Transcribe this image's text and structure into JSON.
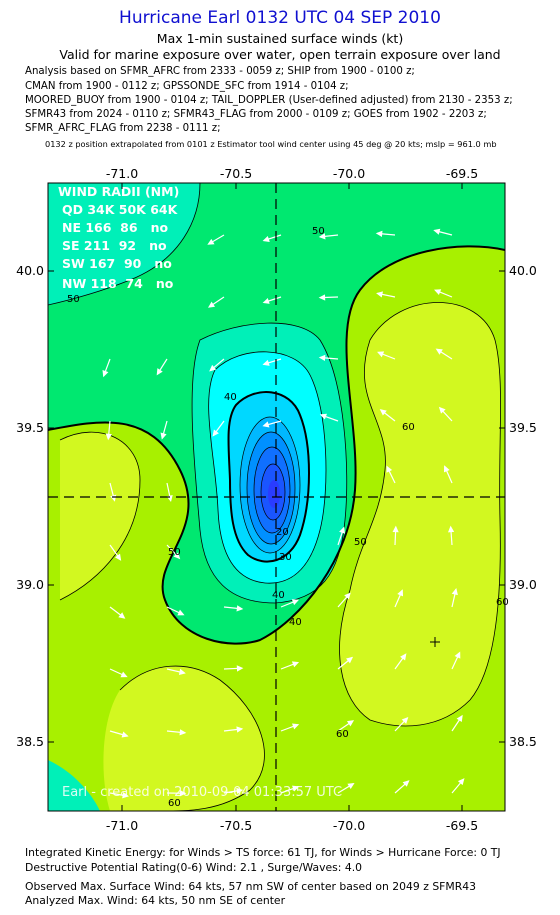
{
  "header": {
    "title": "Hurricane Earl 0132 UTC 04 SEP 2010",
    "subtitle_1": "Max 1-min sustained surface winds (kt)",
    "subtitle_2": "Valid for marine exposure over water, open terrain exposure over land"
  },
  "analysis_lines": [
    "Analysis based on SFMR_AFRC from 2333 - 0059 z; SHIP from 1900 - 0100 z;",
    "CMAN from 1900 - 0112 z; GPSSONDE_SFC from 1914 - 0104 z;",
    "MOORED_BUOY from 1900 - 0104 z; TAIL_DOPPLER (User-defined adjusted) from 2130 - 2353 z;",
    "SFMR43 from 2024 - 0110 z; SFMR43_FLAG from 2000 - 0109 z; GOES from 1902 - 2203 z;",
    "SFMR_AFRC_FLAG from 2238 - 0111 z;"
  ],
  "position_note": "0132 z position extrapolated from 0101 z Estimator tool wind center using 45 deg @ 20 kts; mslp = 961.0 mb",
  "map": {
    "x_ticks": [
      "-71.0",
      "-70.5",
      "-70.0",
      "-69.5"
    ],
    "y_ticks": [
      "40.0",
      "39.5",
      "39.0",
      "38.5"
    ],
    "center": {
      "lon": -70.27,
      "lat": 39.28
    },
    "contour_labels": [
      "50",
      "50",
      "40",
      "50",
      "50",
      "40",
      "20",
      "30",
      "40",
      "60",
      "60",
      "60",
      "60"
    ],
    "colors": {
      "band_lt50": "#00e870",
      "band_50_60": "#a8f000",
      "band_ge60": "#d2f820",
      "band_40_50": "#00f0b8",
      "band_30_40": "#00ffff",
      "core": "#1a55ff"
    },
    "wind_radii": {
      "header": "WIND RADII (NM)",
      "columns": "QD 34K 50K 64K",
      "rows": [
        "NE 166  86   no",
        "SE 211  92   no",
        "SW 167  90   no",
        "NW 118  74   no"
      ]
    },
    "credit": "Earl - created on 2010-09-04 01:33:57 UTC"
  },
  "footer": {
    "ike": "Integrated Kinetic Energy:  for Winds > TS force: 61 TJ,  for Winds > Hurricane Force: 0 TJ",
    "destructive": "Destructive Potential Rating(0-6)   Wind: 2.1 , Surge/Waves: 4.0",
    "observed": "Observed Max. Surface Wind: 64 kts, 57 nm SW of center based on 2049 z SFMR43",
    "analyzed": "Analyzed Max. Wind: 64 kts, 50 nm SE of center"
  }
}
